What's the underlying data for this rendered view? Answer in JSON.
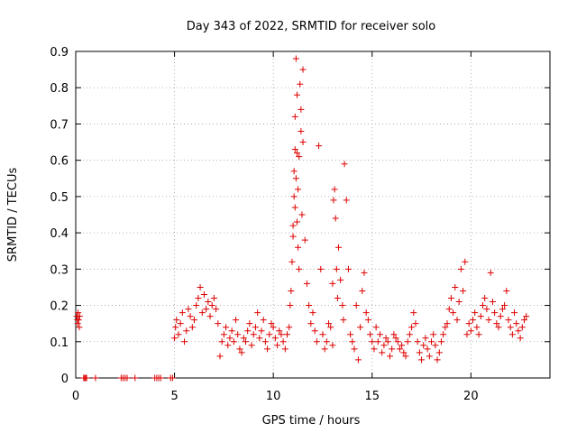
{
  "chart_data": {
    "type": "scatter",
    "title": "Day 343 of 2022, SRMTID for receiver solo",
    "xlabel": "GPS time / hours",
    "ylabel": "SRMTID / TECUs",
    "xlim": [
      0,
      24
    ],
    "ylim": [
      0,
      0.9
    ],
    "xticks": [
      0,
      5,
      10,
      15,
      20
    ],
    "yticks": [
      0,
      0.1,
      0.2,
      0.3,
      0.4,
      0.5,
      0.6,
      0.7,
      0.8,
      0.9
    ],
    "xtick_labels": [
      "0",
      "5",
      "10",
      "15",
      "20"
    ],
    "ytick_labels": [
      "0",
      "0.1",
      "0.2",
      "0.3",
      "0.4",
      "0.5",
      "0.6",
      "0.7",
      "0.8",
      "0.9"
    ],
    "grid": true,
    "marker": "+",
    "color": "#dd0000",
    "series": [
      {
        "name": "SRMTID",
        "x": [
          0.05,
          0.08,
          0.1,
          0.12,
          0.15,
          0.18,
          0.2,
          0.4,
          0.45,
          0.5,
          0.55,
          1.0,
          2.3,
          2.4,
          2.5,
          2.6,
          3.0,
          4.0,
          4.1,
          4.2,
          4.3,
          4.8,
          4.9,
          5.0,
          5.05,
          5.1,
          5.2,
          5.3,
          5.4,
          5.5,
          5.6,
          5.7,
          5.8,
          5.9,
          6.0,
          6.1,
          6.2,
          6.3,
          6.4,
          6.5,
          6.6,
          6.7,
          6.8,
          6.9,
          7.0,
          7.1,
          7.2,
          7.3,
          7.4,
          7.5,
          7.6,
          7.7,
          7.8,
          7.9,
          8.0,
          8.1,
          8.2,
          8.3,
          8.4,
          8.5,
          8.6,
          8.7,
          8.8,
          8.9,
          9.0,
          9.1,
          9.2,
          9.3,
          9.4,
          9.5,
          9.6,
          9.7,
          9.8,
          9.9,
          10.0,
          10.1,
          10.2,
          10.3,
          10.4,
          10.5,
          10.6,
          10.7,
          10.8,
          10.85,
          10.9,
          10.95,
          11.0,
          11.0,
          11.05,
          11.05,
          11.1,
          11.1,
          11.1,
          11.15,
          11.15,
          11.2,
          11.2,
          11.2,
          11.25,
          11.25,
          11.3,
          11.3,
          11.35,
          11.4,
          11.4,
          11.45,
          11.5,
          11.5,
          11.6,
          11.7,
          11.8,
          11.9,
          12.0,
          12.1,
          12.2,
          12.3,
          12.4,
          12.5,
          12.6,
          12.7,
          12.8,
          12.9,
          13.0,
          13.0,
          13.05,
          13.1,
          13.15,
          13.2,
          13.25,
          13.3,
          13.4,
          13.5,
          13.55,
          13.6,
          13.7,
          13.8,
          13.9,
          14.0,
          14.1,
          14.2,
          14.3,
          14.4,
          14.5,
          14.6,
          14.7,
          14.8,
          14.9,
          15.0,
          15.1,
          15.2,
          15.3,
          15.4,
          15.5,
          15.6,
          15.7,
          15.8,
          15.9,
          16.0,
          16.1,
          16.2,
          16.3,
          16.4,
          16.5,
          16.6,
          16.7,
          16.8,
          16.9,
          17.0,
          17.1,
          17.2,
          17.3,
          17.4,
          17.5,
          17.6,
          17.7,
          17.8,
          17.9,
          18.0,
          18.1,
          18.2,
          18.3,
          18.4,
          18.5,
          18.6,
          18.7,
          18.8,
          18.9,
          19.0,
          19.1,
          19.2,
          19.3,
          19.4,
          19.5,
          19.6,
          19.7,
          19.8,
          19.9,
          20.0,
          20.1,
          20.2,
          20.3,
          20.4,
          20.5,
          20.6,
          20.7,
          20.8,
          20.9,
          21.0,
          21.1,
          21.2,
          21.3,
          21.4,
          21.5,
          21.6,
          21.7,
          21.8,
          21.9,
          22.0,
          22.1,
          22.2,
          22.3,
          22.4,
          22.5,
          22.6,
          22.7,
          22.8
        ],
        "y": [
          0.17,
          0.16,
          0.15,
          0.18,
          0.16,
          0.14,
          0.17,
          0.0,
          0.0,
          0.0,
          0.0,
          0.0,
          0.0,
          0.0,
          0.0,
          0.0,
          0.0,
          0.0,
          0.0,
          0.0,
          0.0,
          0.0,
          0.0,
          0.11,
          0.14,
          0.16,
          0.12,
          0.15,
          0.18,
          0.1,
          0.13,
          0.19,
          0.17,
          0.14,
          0.16,
          0.2,
          0.22,
          0.25,
          0.18,
          0.23,
          0.19,
          0.21,
          0.17,
          0.2,
          0.22,
          0.19,
          0.15,
          0.06,
          0.1,
          0.12,
          0.14,
          0.09,
          0.11,
          0.13,
          0.1,
          0.16,
          0.12,
          0.08,
          0.07,
          0.11,
          0.1,
          0.13,
          0.15,
          0.09,
          0.12,
          0.14,
          0.18,
          0.11,
          0.13,
          0.16,
          0.1,
          0.08,
          0.12,
          0.15,
          0.14,
          0.11,
          0.09,
          0.13,
          0.12,
          0.1,
          0.08,
          0.12,
          0.14,
          0.2,
          0.24,
          0.32,
          0.39,
          0.42,
          0.5,
          0.57,
          0.63,
          0.72,
          0.47,
          0.55,
          0.88,
          0.78,
          0.62,
          0.43,
          0.52,
          0.36,
          0.3,
          0.61,
          0.81,
          0.68,
          0.74,
          0.45,
          0.85,
          0.65,
          0.38,
          0.26,
          0.2,
          0.15,
          0.18,
          0.13,
          0.1,
          0.64,
          0.3,
          0.12,
          0.08,
          0.1,
          0.15,
          0.14,
          0.09,
          0.26,
          0.49,
          0.52,
          0.44,
          0.3,
          0.22,
          0.36,
          0.27,
          0.2,
          0.16,
          0.59,
          0.49,
          0.3,
          0.12,
          0.1,
          0.08,
          0.2,
          0.05,
          0.14,
          0.24,
          0.29,
          0.18,
          0.16,
          0.12,
          0.1,
          0.08,
          0.14,
          0.1,
          0.12,
          0.07,
          0.09,
          0.11,
          0.1,
          0.06,
          0.08,
          0.12,
          0.11,
          0.1,
          0.08,
          0.09,
          0.07,
          0.06,
          0.1,
          0.12,
          0.14,
          0.18,
          0.15,
          0.1,
          0.07,
          0.05,
          0.09,
          0.11,
          0.08,
          0.06,
          0.1,
          0.12,
          0.09,
          0.05,
          0.07,
          0.1,
          0.12,
          0.14,
          0.15,
          0.19,
          0.22,
          0.18,
          0.25,
          0.16,
          0.21,
          0.3,
          0.24,
          0.32,
          0.12,
          0.15,
          0.13,
          0.16,
          0.18,
          0.14,
          0.12,
          0.17,
          0.2,
          0.22,
          0.19,
          0.16,
          0.29,
          0.21,
          0.18,
          0.15,
          0.14,
          0.17,
          0.19,
          0.2,
          0.24,
          0.16,
          0.14,
          0.12,
          0.18,
          0.15,
          0.13,
          0.11,
          0.14,
          0.16,
          0.17
        ]
      }
    ]
  }
}
